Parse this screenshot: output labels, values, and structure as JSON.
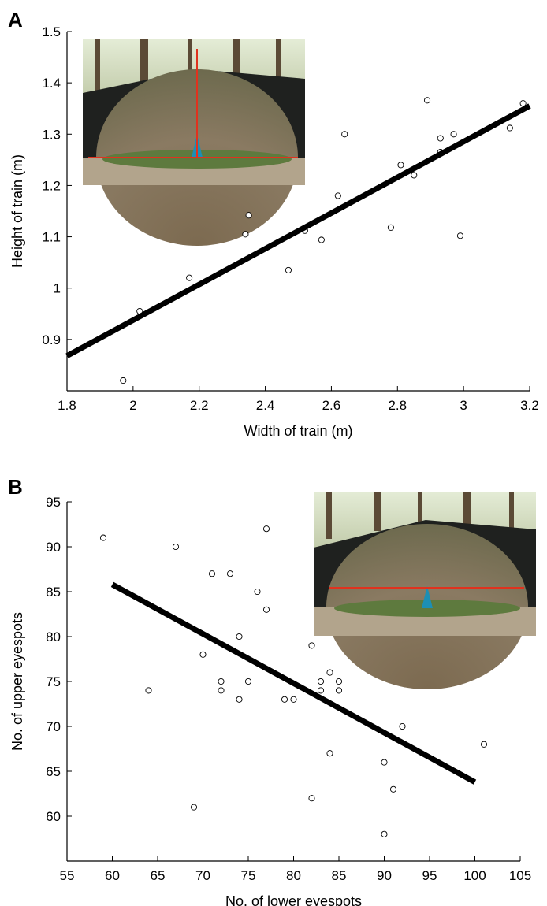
{
  "chart_data": [
    {
      "panel": "A",
      "type": "scatter",
      "xlabel": "Width of train (m)",
      "ylabel": "Height of train (m)",
      "xlim": [
        1.8,
        3.2
      ],
      "ylim": [
        0.8,
        1.5
      ],
      "xticks": [
        "1.8",
        "2",
        "2.2",
        "2.4",
        "2.6",
        "2.8",
        "3",
        "3.2"
      ],
      "yticks": [
        "0.9",
        "1",
        "1.1",
        "1.2",
        "1.3",
        "1.4",
        "1.5"
      ],
      "xtick_values": [
        1.8,
        2.0,
        2.2,
        2.4,
        2.6,
        2.8,
        3.0,
        3.2
      ],
      "ytick_values": [
        0.9,
        1.0,
        1.1,
        1.2,
        1.3,
        1.4,
        1.5
      ],
      "points": [
        [
          1.97,
          0.82
        ],
        [
          2.02,
          0.955
        ],
        [
          2.17,
          1.02
        ],
        [
          2.34,
          1.105
        ],
        [
          2.35,
          1.142
        ],
        [
          2.47,
          1.035
        ],
        [
          2.52,
          1.112
        ],
        [
          2.57,
          1.094
        ],
        [
          2.62,
          1.18
        ],
        [
          2.64,
          1.3
        ],
        [
          2.78,
          1.118
        ],
        [
          2.81,
          1.24
        ],
        [
          2.85,
          1.22
        ],
        [
          2.89,
          1.366
        ],
        [
          2.93,
          1.292
        ],
        [
          2.93,
          1.265
        ],
        [
          2.97,
          1.3
        ],
        [
          2.99,
          1.102
        ],
        [
          3.14,
          1.312
        ],
        [
          3.18,
          1.36
        ]
      ],
      "fit_line": [
        [
          1.8,
          0.868
        ],
        [
          3.2,
          1.355
        ]
      ],
      "inset": "peacock train photo with red measurement lines (width and height)",
      "grid": false
    },
    {
      "panel": "B",
      "type": "scatter",
      "xlabel": "No. of lower eyespots",
      "ylabel": "No. of upper eyespots",
      "xlim": [
        55,
        105
      ],
      "ylim": [
        55,
        95
      ],
      "xticks": [
        "55",
        "60",
        "65",
        "70",
        "75",
        "80",
        "85",
        "90",
        "95",
        "100",
        "105"
      ],
      "yticks": [
        "60",
        "65",
        "70",
        "75",
        "80",
        "85",
        "90",
        "95"
      ],
      "xtick_values": [
        55,
        60,
        65,
        70,
        75,
        80,
        85,
        90,
        95,
        100,
        105
      ],
      "ytick_values": [
        60,
        65,
        70,
        75,
        80,
        85,
        90,
        95
      ],
      "points": [
        [
          59,
          91
        ],
        [
          64,
          74
        ],
        [
          67,
          90
        ],
        [
          69,
          61
        ],
        [
          70,
          78
        ],
        [
          71,
          87
        ],
        [
          72,
          75
        ],
        [
          72,
          74
        ],
        [
          73,
          87
        ],
        [
          74,
          80
        ],
        [
          74,
          73
        ],
        [
          75,
          75
        ],
        [
          76,
          85
        ],
        [
          77,
          92
        ],
        [
          77,
          83
        ],
        [
          79,
          73
        ],
        [
          80,
          73
        ],
        [
          82,
          79
        ],
        [
          82,
          62
        ],
        [
          83,
          75
        ],
        [
          83,
          74
        ],
        [
          84,
          76
        ],
        [
          84,
          67
        ],
        [
          85,
          75
        ],
        [
          85,
          74
        ],
        [
          90,
          66
        ],
        [
          90,
          58
        ],
        [
          91,
          63
        ],
        [
          92,
          70
        ],
        [
          101,
          68
        ]
      ],
      "fit_line": [
        [
          60,
          85.8
        ],
        [
          100,
          63.8
        ]
      ],
      "inset": "peacock train photo with red horizontal line dividing upper and lower eyespots",
      "grid": false
    }
  ]
}
